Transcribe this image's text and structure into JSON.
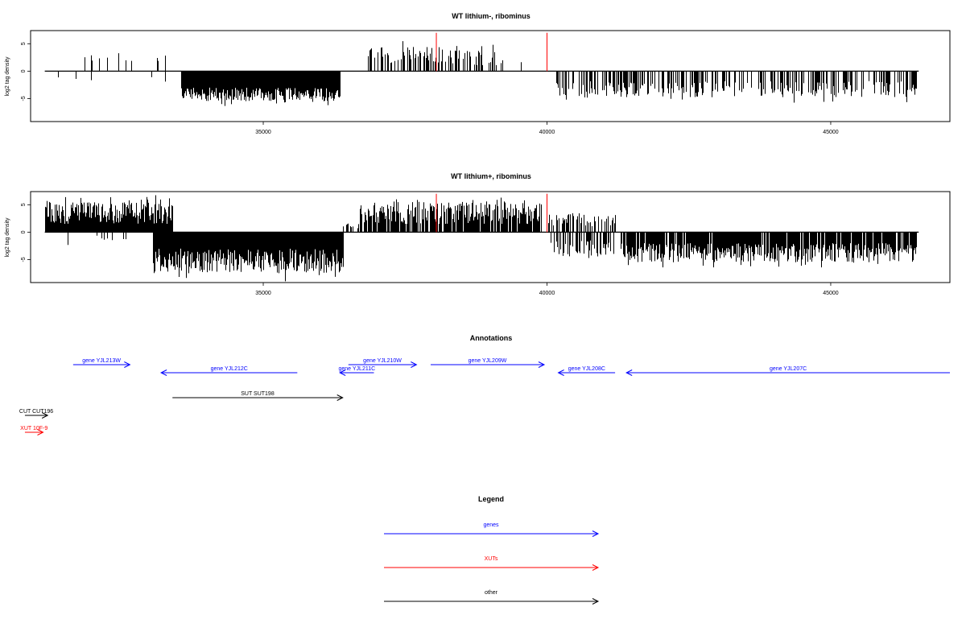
{
  "colors": {
    "gene": "#0000ff",
    "xut": "#ff0000",
    "other": "#000000",
    "marker": "#ff0000",
    "bars": "#000000"
  },
  "chart_data": [
    {
      "type": "bar",
      "title": "WT lithium-, ribominus",
      "ylabel": "log2 tag density",
      "xlim": [
        30900,
        47100
      ],
      "ylim": [
        -9.2,
        7.4
      ],
      "xticks": [
        35000,
        40000,
        45000
      ],
      "yticks": [
        -5,
        0,
        5
      ],
      "markers": [
        38050,
        40000
      ],
      "marker_height": 7,
      "segments": [
        {
          "from": 31150,
          "to": 33300,
          "prob": 0.1,
          "base": 1.5,
          "var": 1.5,
          "sign": 1
        },
        {
          "from": 31150,
          "to": 33300,
          "prob": 0.04,
          "base": 1.0,
          "var": 1.0,
          "sign": -1
        },
        {
          "from": 33550,
          "to": 36350,
          "prob": 1.0,
          "base": 3.0,
          "var": 2.5,
          "sign": -1
        },
        {
          "from": 36850,
          "to": 38150,
          "prob": 0.45,
          "base": 1.5,
          "var": 3.0,
          "sign": 1
        },
        {
          "from": 38150,
          "to": 39200,
          "prob": 0.35,
          "base": 1.0,
          "var": 3.0,
          "sign": 1
        },
        {
          "from": 39200,
          "to": 39700,
          "prob": 0.1,
          "base": 1.0,
          "var": 1.0,
          "sign": 1
        },
        {
          "from": 40150,
          "to": 46500,
          "prob": 0.45,
          "base": 1.8,
          "var": 3.0,
          "sign": -1
        }
      ]
    },
    {
      "type": "bar",
      "title": "WT lithium+, ribominus",
      "ylabel": "log2 tag density",
      "xlim": [
        30900,
        47100
      ],
      "ylim": [
        -9.2,
        7.4
      ],
      "xticks": [
        35000,
        40000,
        45000
      ],
      "yticks": [
        -5,
        0,
        5
      ],
      "markers": [
        38050,
        40000
      ],
      "marker_height": 7,
      "segments": [
        {
          "from": 31150,
          "to": 33400,
          "prob": 1.0,
          "base": 1.5,
          "var": 4.0,
          "sign": 1
        },
        {
          "from": 31150,
          "to": 33400,
          "prob": 0.05,
          "base": 0.5,
          "var": 1.5,
          "sign": -1
        },
        {
          "from": 33050,
          "to": 36400,
          "prob": 1.0,
          "base": 3.0,
          "var": 4.5,
          "sign": -1
        },
        {
          "from": 36400,
          "to": 36700,
          "prob": 0.2,
          "base": 0.5,
          "var": 1.0,
          "sign": 1
        },
        {
          "from": 36700,
          "to": 39900,
          "prob": 0.85,
          "base": 1.5,
          "var": 4.0,
          "sign": 1
        },
        {
          "from": 40000,
          "to": 41200,
          "prob": 0.45,
          "base": 1.0,
          "var": 2.5,
          "sign": 1
        },
        {
          "from": 40050,
          "to": 41200,
          "prob": 0.5,
          "base": 1.5,
          "var": 3.0,
          "sign": -1
        },
        {
          "from": 41300,
          "to": 46500,
          "prob": 0.9,
          "base": 2.0,
          "var": 3.5,
          "sign": -1
        }
      ]
    }
  ],
  "annotations": {
    "title": "Annotations",
    "features": [
      {
        "label": "gene YJL213W",
        "kind": "gene",
        "start": 31650,
        "end": 32650,
        "dir": "right",
        "row": 0
      },
      {
        "label": "gene YJL212C",
        "kind": "gene",
        "start": 33200,
        "end": 35600,
        "dir": "left",
        "row": 1
      },
      {
        "label": "gene YJL210W",
        "kind": "gene",
        "start": 36500,
        "end": 37700,
        "dir": "right",
        "row": 0
      },
      {
        "label": "gene YJL211C",
        "kind": "gene",
        "start": 36350,
        "end": 36950,
        "dir": "left",
        "row": 1
      },
      {
        "label": "gene YJL209W",
        "kind": "gene",
        "start": 37950,
        "end": 39950,
        "dir": "right",
        "row": 0
      },
      {
        "label": "gene YJL208C",
        "kind": "gene",
        "start": 40200,
        "end": 41200,
        "dir": "left",
        "row": 1
      },
      {
        "label": "gene YJL207C",
        "kind": "gene",
        "start": 41400,
        "end": 47100,
        "dir": "left",
        "row": 1
      },
      {
        "label": "SUT SUT198",
        "kind": "other",
        "start": 33400,
        "end": 36400,
        "dir": "right",
        "row": 2
      },
      {
        "label": "CUT CUT196",
        "kind": "other",
        "start": 30800,
        "end": 31200,
        "dir": "right",
        "row": 3
      },
      {
        "label": "XUT 10F-9",
        "kind": "xut",
        "start": 30800,
        "end": 31120,
        "dir": "right",
        "row": 4
      }
    ]
  },
  "legend": {
    "title": "Legend",
    "items": [
      {
        "label": "genes",
        "kind": "gene"
      },
      {
        "label": "XUTs",
        "kind": "xut"
      },
      {
        "label": "other",
        "kind": "other"
      }
    ]
  }
}
